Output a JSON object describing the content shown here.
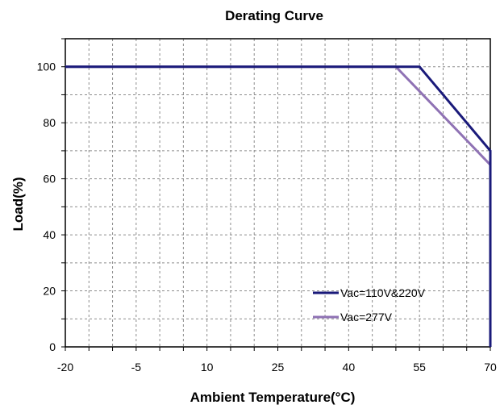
{
  "chart_data": {
    "type": "line",
    "title": "Derating Curve",
    "xlabel": "Ambient Temperature(°C)",
    "ylabel": "Load(%)",
    "xlim": [
      -20,
      70
    ],
    "ylim": [
      0,
      110
    ],
    "x_ticks": [
      -20,
      -15,
      -10,
      -5,
      0,
      5,
      10,
      15,
      20,
      25,
      30,
      35,
      40,
      45,
      50,
      55,
      60,
      65,
      70
    ],
    "x_tick_labels": [
      "-20",
      "-5",
      "10",
      "25",
      "40",
      "55",
      "70"
    ],
    "x_tick_label_values": [
      -20,
      -5,
      10,
      25,
      40,
      55,
      70
    ],
    "y_ticks": [
      0,
      10,
      20,
      30,
      40,
      50,
      60,
      70,
      80,
      90,
      100,
      110
    ],
    "y_tick_labels": [
      "0",
      "20",
      "40",
      "60",
      "80",
      "100"
    ],
    "y_tick_label_values": [
      0,
      20,
      40,
      60,
      80,
      100
    ],
    "grid": "dashed",
    "legend_position": "bottom-right",
    "series": [
      {
        "name": "Vac=110V&220V",
        "color": "#1a1a7a",
        "points": [
          [
            -20,
            100
          ],
          [
            55,
            100
          ],
          [
            70,
            70
          ],
          [
            70,
            0
          ]
        ]
      },
      {
        "name": "Vac=277V",
        "color": "#8f72b4",
        "points": [
          [
            -20,
            100
          ],
          [
            50,
            100
          ],
          [
            70,
            65
          ],
          [
            70,
            0
          ]
        ]
      }
    ]
  }
}
